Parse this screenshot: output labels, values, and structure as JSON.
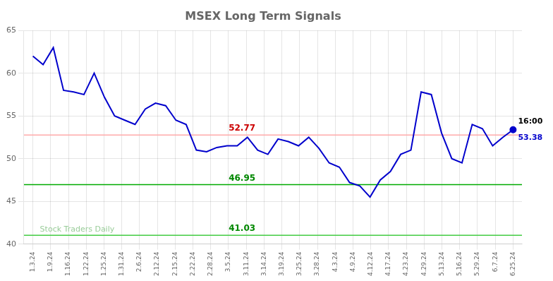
{
  "chart_data": {
    "type": "line",
    "title": "MSEX Long Term Signals",
    "x": [
      0,
      0.574468,
      1.148936,
      1.723404,
      2.297872,
      2.87234,
      3.446809,
      4.021277,
      4.595745,
      5.170213,
      5.744681,
      6.319149,
      6.893617,
      7.468085,
      8.042553,
      8.617021,
      9.191489,
      9.765957,
      10.340426,
      10.914894,
      11.489362,
      12.06383,
      12.638298,
      13.212766,
      13.787234,
      14.361702,
      14.93617,
      15.510638,
      16.085106,
      16.659574,
      17.234043,
      17.808511,
      18.382979,
      18.957447,
      19.531915,
      20.106383,
      20.680851,
      21.255319,
      21.829787,
      22.404255,
      22.978723,
      23.553191,
      24.12766,
      24.702128,
      25.276596,
      25.851064,
      26.425532,
      27
    ],
    "values": [
      62.0,
      61.0,
      63.0,
      58.0,
      57.8,
      57.5,
      60.0,
      57.2,
      55.0,
      54.5,
      54.0,
      55.8,
      56.5,
      56.2,
      54.5,
      54.0,
      51.0,
      50.8,
      51.3,
      51.5,
      51.5,
      52.5,
      51.0,
      50.5,
      52.3,
      52.0,
      51.5,
      52.5,
      51.2,
      49.5,
      49.0,
      47.2,
      46.8,
      45.5,
      47.5,
      48.5,
      50.5,
      51.0,
      57.8,
      57.5,
      53.0,
      50.0,
      49.5,
      54.0,
      53.5,
      51.5,
      52.5,
      53.38
    ],
    "color": "#0000cc",
    "xlim": [
      -0.5,
      27.5
    ],
    "xticks": [
      {
        "value": 0,
        "label": "1.3.24"
      },
      {
        "value": 1,
        "label": "1.9.24"
      },
      {
        "value": 2,
        "label": "1.16.24"
      },
      {
        "value": 3,
        "label": "1.22.24"
      },
      {
        "value": 4,
        "label": "1.25.24"
      },
      {
        "value": 5,
        "label": "1.31.24"
      },
      {
        "value": 6,
        "label": "2.6.24"
      },
      {
        "value": 7,
        "label": "2.12.24"
      },
      {
        "value": 8,
        "label": "2.15.24"
      },
      {
        "value": 9,
        "label": "2.22.24"
      },
      {
        "value": 10,
        "label": "2.28.24"
      },
      {
        "value": 11,
        "label": "3.5.24"
      },
      {
        "value": 12,
        "label": "3.11.24"
      },
      {
        "value": 13,
        "label": "3.14.24"
      },
      {
        "value": 14,
        "label": "3.19.24"
      },
      {
        "value": 15,
        "label": "3.25.24"
      },
      {
        "value": 16,
        "label": "3.28.24"
      },
      {
        "value": 17,
        "label": "4.3.24"
      },
      {
        "value": 18,
        "label": "4.9.24"
      },
      {
        "value": 19,
        "label": "4.12.24"
      },
      {
        "value": 20,
        "label": "4.17.24"
      },
      {
        "value": 21,
        "label": "4.23.24"
      },
      {
        "value": 22,
        "label": "4.29.24"
      },
      {
        "value": 23,
        "label": "5.13.24"
      },
      {
        "value": 24,
        "label": "5.16.24"
      },
      {
        "value": 25,
        "label": "5.29.24"
      },
      {
        "value": 26,
        "label": "6.7.24"
      },
      {
        "value": 27,
        "label": "6.25.24"
      }
    ],
    "ylim": [
      40,
      65
    ],
    "yticks": [
      40,
      45,
      50,
      55,
      60,
      65
    ],
    "grid": true,
    "annotations": [
      {
        "type": "hline",
        "y": 52.77,
        "color": "#ffaaaa",
        "text": "52.77",
        "text_color": "#cc0000"
      },
      {
        "type": "hline",
        "y": 46.95,
        "color": "#00aa00",
        "text": "46.95",
        "text_color": "#008800"
      },
      {
        "type": "hline",
        "y": 41.03,
        "color": "#44cc44",
        "text": "41.03",
        "text_color": "#008800"
      },
      {
        "type": "last_time",
        "text": "16:00",
        "color": "#000000"
      },
      {
        "type": "last_price",
        "text": "53.38",
        "color": "#0000cc"
      },
      {
        "type": "watermark",
        "text": "Stock Traders Daily",
        "color": "#99cc99"
      }
    ]
  }
}
